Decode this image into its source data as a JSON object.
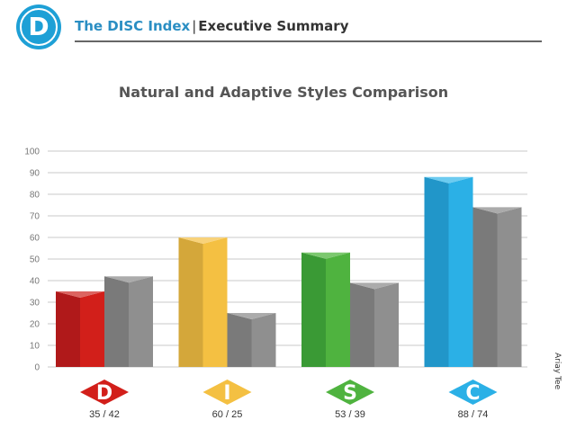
{
  "header": {
    "logo_letter": "D",
    "brand": "The DISC Index",
    "separator": "|",
    "section": "Executive Summary"
  },
  "chart_data": {
    "type": "bar",
    "title": "Natural and Adaptive Styles Comparison",
    "categories": [
      "D",
      "I",
      "S",
      "C"
    ],
    "series": [
      {
        "values": [
          35,
          60,
          53,
          88
        ]
      },
      {
        "values": [
          42,
          25,
          39,
          74
        ]
      }
    ],
    "category_labels": [
      "35 / 42",
      "60 / 25",
      "53 / 39",
      "88 / 74"
    ],
    "colors": {
      "D": "#d21f1a",
      "I": "#f4c042",
      "S": "#4fb33f",
      "C": "#2bb0e6",
      "adaptive": "#8f8f8f"
    },
    "yticks": [
      0,
      10,
      20,
      30,
      40,
      50,
      60,
      70,
      80,
      90,
      100
    ],
    "ylim": [
      0,
      100
    ],
    "grid": true
  },
  "author": "Ariay Tee"
}
